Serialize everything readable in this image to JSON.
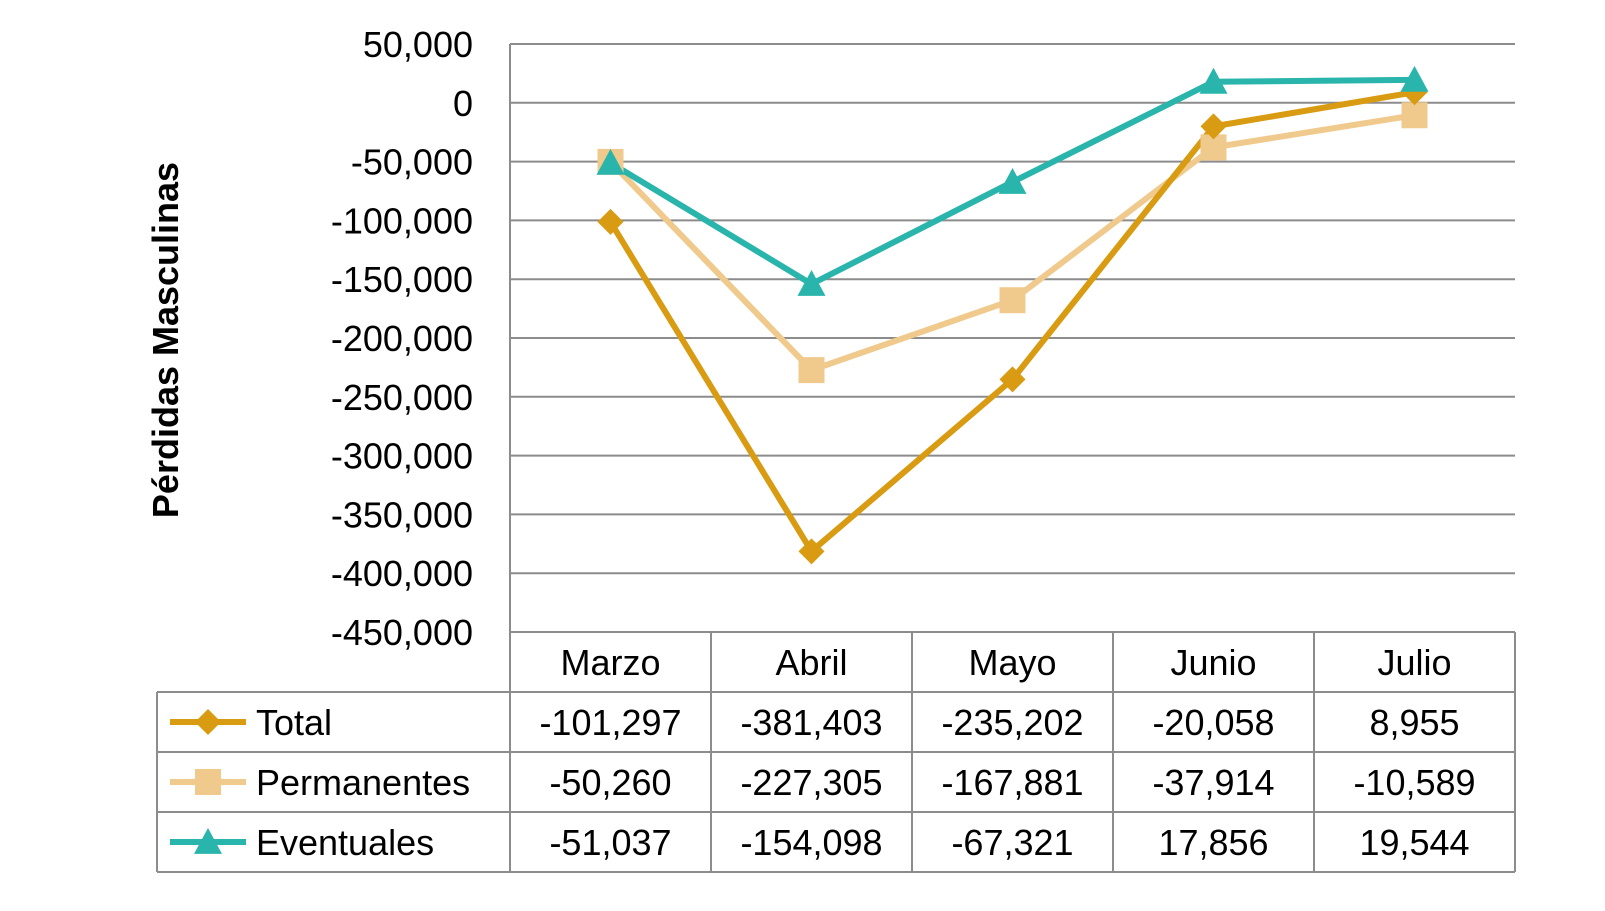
{
  "chart_data": {
    "type": "line",
    "ylabel": "Pérdidas Masculinas",
    "categories": [
      "Marzo",
      "Abril",
      "Mayo",
      "Junio",
      "Julio"
    ],
    "ylim": [
      -450000,
      50000
    ],
    "yticks": [
      50000,
      0,
      -50000,
      -100000,
      -150000,
      -200000,
      -250000,
      -300000,
      -350000,
      -400000,
      -450000
    ],
    "ytick_labels": [
      "50,000",
      "0",
      "-50,000",
      "-100,000",
      "-150,000",
      "-200,000",
      "-250,000",
      "-300,000",
      "-350,000",
      "-400,000",
      "-450,000"
    ],
    "grid": true,
    "legend_placement": "data-table",
    "series": [
      {
        "name": "Total",
        "color": "#d89b12",
        "marker": "diamond",
        "values": [
          -101297,
          -381403,
          -235202,
          -20058,
          8955
        ],
        "labels": [
          "-101,297",
          "-381,403",
          "-235,202",
          "-20,058",
          "8,955"
        ]
      },
      {
        "name": "Permanentes",
        "color": "#f0ca8c",
        "marker": "square",
        "values": [
          -50260,
          -227305,
          -167881,
          -37914,
          -10589
        ],
        "labels": [
          "-50,260",
          "-227,305",
          "-167,881",
          "-37,914",
          "-10,589"
        ]
      },
      {
        "name": "Eventuales",
        "color": "#2ab5ac",
        "marker": "triangle",
        "values": [
          -51037,
          -154098,
          -67321,
          17856,
          19544
        ],
        "labels": [
          "-51,037",
          "-154,098",
          "-67,321",
          "17,856",
          "19,544"
        ]
      }
    ]
  }
}
